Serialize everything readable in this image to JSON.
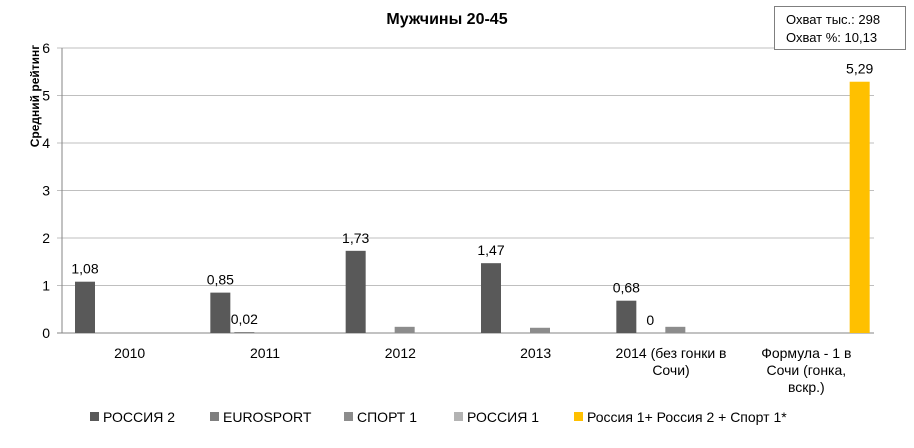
{
  "info_box": {
    "line1": "Охват тыс.: 298",
    "line2": "Охват %: 10,13"
  },
  "chart_data": {
    "type": "bar",
    "title": "Мужчины 20-45",
    "xlabel": "",
    "ylabel": "Средний рейтинг",
    "ylim": [
      0,
      6
    ],
    "yticks": [
      0,
      1,
      2,
      3,
      4,
      5,
      6
    ],
    "grid": true,
    "legend_position": "bottom",
    "categories": [
      [
        "2010"
      ],
      [
        "2011"
      ],
      [
        "2012"
      ],
      [
        "2013"
      ],
      [
        "2014 (без гонки в",
        "Сочи)"
      ],
      [
        "Формула - 1 в",
        "Сочи (гонка,",
        "вскр.)"
      ]
    ],
    "series": [
      {
        "name": "РОССИЯ 2",
        "color": "#595959",
        "values": [
          1.08,
          0.85,
          1.73,
          1.47,
          0.68,
          null
        ],
        "labels": [
          "1,08",
          "0,85",
          "1,73",
          "1,47",
          "0,68",
          ""
        ]
      },
      {
        "name": "EUROSPORT",
        "color": "#7f7f7f",
        "values": [
          null,
          0.02,
          null,
          null,
          0,
          null
        ],
        "labels": [
          "",
          "0,02",
          "",
          "",
          "0",
          ""
        ]
      },
      {
        "name": "СПОРТ 1",
        "color": "#8c8c8c",
        "values": [
          null,
          null,
          0.13,
          0.11,
          0.13,
          null
        ],
        "labels": [
          "",
          "",
          "",
          "",
          "",
          ""
        ]
      },
      {
        "name": "РОССИЯ 1",
        "color": "#b3b3b3",
        "values": [
          null,
          null,
          null,
          null,
          null,
          null
        ],
        "labels": [
          "",
          "",
          "",
          "",
          "",
          ""
        ]
      },
      {
        "name": "Россия 1+ Россия 2 + Спорт 1*",
        "color": "#ffc000",
        "values": [
          null,
          null,
          null,
          null,
          null,
          5.29
        ],
        "labels": [
          "",
          "",
          "",
          "",
          "",
          "5,29"
        ]
      }
    ]
  }
}
